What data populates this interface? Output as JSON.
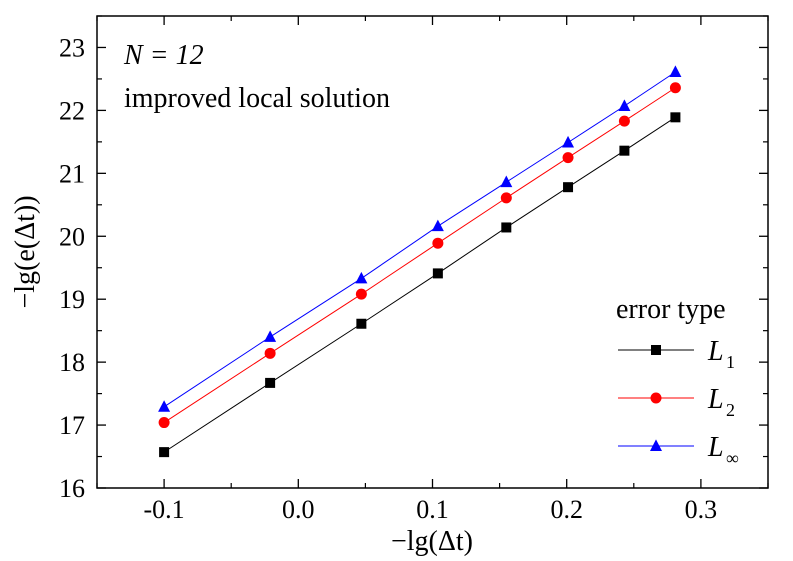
{
  "chart_data": {
    "type": "line",
    "title": "",
    "xlabel": "−lg(Δt)",
    "ylabel": "−lg(e(Δt))",
    "xlim": [
      -0.15,
      0.35
    ],
    "ylim": [
      16,
      23.5
    ],
    "xticks": [
      -0.1,
      0.0,
      0.1,
      0.2,
      0.3
    ],
    "xtick_labels": [
      "-0.1",
      "0.0",
      "0.1",
      "0.2",
      "0.3"
    ],
    "yticks": [
      16,
      17,
      18,
      19,
      20,
      21,
      22,
      23
    ],
    "ytick_labels": [
      "16",
      "17",
      "18",
      "19",
      "20",
      "21",
      "22",
      "23"
    ],
    "annotations": {
      "n_label": "N = 12",
      "method": "improved local solution"
    },
    "legend": {
      "title": "error type",
      "placement": "bottom-right"
    },
    "x": [
      -0.1,
      -0.021,
      0.047,
      0.104,
      0.155,
      0.201,
      0.243,
      0.281
    ],
    "series": [
      {
        "name": "L1",
        "label_base": "L",
        "label_sub": "1",
        "color": "#000000",
        "marker": "square",
        "values": [
          16.57,
          17.67,
          18.61,
          19.41,
          20.14,
          20.78,
          21.36,
          21.89
        ]
      },
      {
        "name": "L2",
        "label_base": "L",
        "label_sub": "2",
        "color": "#ff0000",
        "marker": "circle",
        "values": [
          17.04,
          18.14,
          19.08,
          19.89,
          20.61,
          21.25,
          21.83,
          22.36
        ]
      },
      {
        "name": "L∞",
        "label_base": "L",
        "label_sub": "∞",
        "color": "#0000ff",
        "marker": "triangle",
        "values": [
          17.29,
          18.4,
          19.33,
          20.16,
          20.86,
          21.49,
          22.07,
          22.61
        ]
      }
    ]
  }
}
